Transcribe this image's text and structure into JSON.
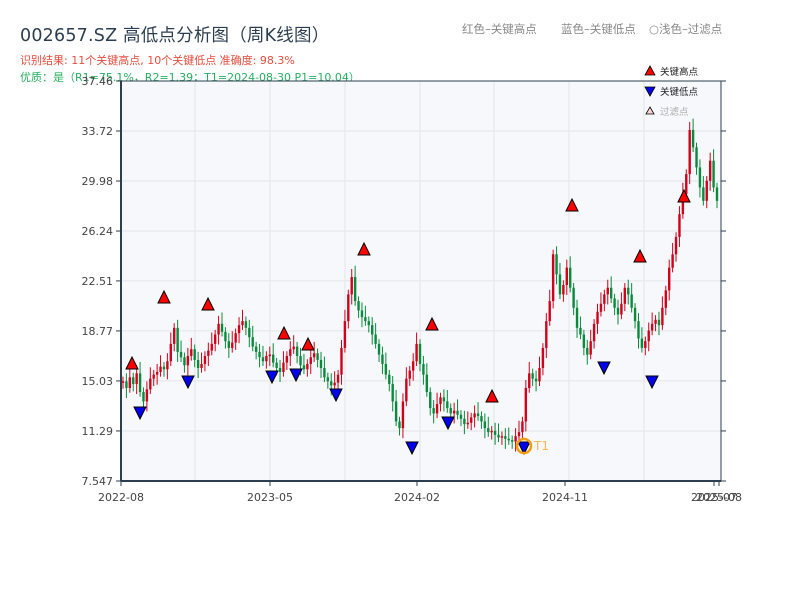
{
  "header": {
    "title": "002657.SZ 高低点分析图（周K线图）",
    "result_line": "识别结果: 11个关键高点, 10个关键低点   准确度: 98.3%",
    "quality_line": "优质：是（R1=75.1%，R2=1.39；T1=2024-08-30 P1=10.04）"
  },
  "top_legend": {
    "red": "红色–关键高点",
    "blue": "蓝色–关键低点",
    "light": "○浅色–过滤点"
  },
  "colors": {
    "up": "#d0021b",
    "down": "#0a8a3c",
    "high_marker": "#ff0000",
    "low_marker": "#0000ee",
    "t1_ring": "#f39c12",
    "axis": "#2c3e50",
    "plot_bg": "#f6f8fb",
    "grid": "#e3e6ea"
  },
  "chart_data": {
    "type": "candlestick",
    "title": "002657.SZ 高低点分析图（周K线图）",
    "xlabel": "",
    "ylabel": "",
    "ylim": [
      7.547,
      37.46
    ],
    "y_ticks": [
      "37.46",
      "33.72",
      "29.98",
      "26.24",
      "22.51",
      "18.77",
      "15.03",
      "11.29",
      "7.547"
    ],
    "x_ticks": [
      "2022-08",
      "2023-05",
      "2024-02",
      "2024-11",
      "2025-07",
      "2025-08"
    ],
    "grid": true,
    "legend": {
      "position": "upper right",
      "entries": [
        "关键高点",
        "关键低点",
        "过滤点"
      ]
    },
    "key_highs": [
      {
        "date": "2022-08",
        "price": 15.8
      },
      {
        "date": "2022-10",
        "price": 20.5
      },
      {
        "date": "2022-12",
        "price": 20.0
      },
      {
        "date": "2023-06",
        "price": 17.9
      },
      {
        "date": "2023-07",
        "price": 17.2
      },
      {
        "date": "2023-10",
        "price": 24.1
      },
      {
        "date": "2024-03",
        "price": 18.5
      },
      {
        "date": "2024-07",
        "price": 13.2
      },
      {
        "date": "2024-11",
        "price": 27.5
      },
      {
        "date": "2025-03",
        "price": 23.8
      },
      {
        "date": "2025-06",
        "price": 28.2
      }
    ],
    "key_lows": [
      {
        "date": "2022-09",
        "price": 12.9
      },
      {
        "date": "2022-11",
        "price": 15.2
      },
      {
        "date": "2023-05",
        "price": 15.6
      },
      {
        "date": "2023-07",
        "price": 15.8
      },
      {
        "date": "2023-08",
        "price": 14.3
      },
      {
        "date": "2024-02",
        "price": 10.3
      },
      {
        "date": "2024-03",
        "price": 12.1
      },
      {
        "date": "2024-08",
        "price": 10.04
      },
      {
        "date": "2025-01",
        "price": 16.1
      },
      {
        "date": "2025-04",
        "price": 15.1
      }
    ],
    "annotation": {
      "label": "T1",
      "date": "2024-08-30",
      "price": 10.04
    },
    "weekly_closes": [
      15.0,
      14.5,
      15.3,
      14.8,
      15.6,
      14.2,
      13.5,
      14.4,
      15.2,
      15.5,
      15.7,
      16.1,
      15.9,
      16.5,
      17.8,
      19.0,
      17.2,
      16.8,
      16.2,
      16.9,
      17.4,
      16.6,
      16.0,
      16.3,
      16.9,
      17.3,
      17.8,
      18.5,
      19.3,
      18.7,
      18.0,
      17.5,
      17.9,
      18.6,
      19.2,
      19.5,
      19.0,
      18.3,
      17.6,
      17.2,
      16.8,
      16.5,
      16.9,
      17.0,
      16.4,
      16.0,
      15.7,
      16.4,
      16.9,
      17.4,
      17.6,
      16.9,
      16.2,
      15.9,
      16.3,
      16.8,
      17.1,
      16.6,
      16.0,
      15.3,
      15.0,
      14.7,
      14.9,
      15.5,
      17.5,
      19.5,
      21.5,
      22.8,
      21.0,
      20.3,
      19.8,
      19.5,
      19.2,
      18.5,
      17.8,
      17.0,
      16.3,
      15.5,
      14.8,
      13.5,
      12.0,
      11.5,
      13.5,
      15.2,
      15.8,
      16.5,
      17.8,
      16.3,
      15.5,
      14.2,
      13.0,
      12.6,
      13.3,
      13.8,
      13.5,
      13.0,
      12.6,
      12.8,
      12.5,
      12.2,
      11.8,
      11.9,
      12.3,
      12.6,
      12.4,
      12.0,
      11.5,
      11.2,
      11.3,
      11.0,
      10.8,
      10.9,
      10.7,
      10.6,
      10.5,
      10.9,
      11.2,
      12.0,
      14.5,
      15.6,
      15.2,
      15.0,
      16.0,
      17.5,
      19.5,
      21.0,
      24.5,
      23.0,
      21.5,
      22.2,
      23.5,
      22.0,
      20.5,
      19.0,
      18.5,
      17.5,
      17.0,
      18.0,
      19.3,
      20.2,
      20.8,
      21.5,
      22.0,
      21.2,
      20.5,
      20.0,
      20.8,
      22.0,
      21.5,
      20.5,
      19.5,
      18.2,
      17.5,
      18.0,
      18.8,
      19.3,
      19.6,
      19.2,
      20.5,
      21.8,
      23.5,
      24.5,
      25.8,
      27.5,
      29.0,
      30.5,
      33.8,
      32.5,
      31.0,
      29.5,
      28.5,
      30.0,
      31.5,
      29.5,
      28.5
    ]
  }
}
